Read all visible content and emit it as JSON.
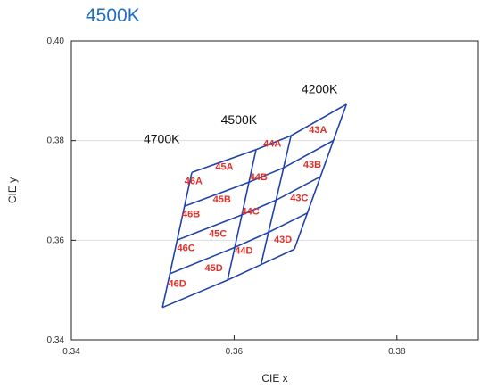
{
  "heading": "4500K",
  "chart_data": {
    "type": "scatter",
    "title": "",
    "xlabel": "CIE x",
    "ylabel": "CIE y",
    "xlim": [
      0.34,
      0.39
    ],
    "ylim": [
      0.34,
      0.4
    ],
    "x_ticks": [
      "0.34",
      "0.36",
      "0.38"
    ],
    "y_ticks": [
      "0.34",
      "0.36",
      "0.38",
      "0.40"
    ],
    "grid": "horizontal",
    "cct_labels": [
      {
        "text": "4700K",
        "x": 0.3511,
        "y": 0.3795
      },
      {
        "text": "4500K",
        "x": 0.3606,
        "y": 0.3833
      },
      {
        "text": "4200K",
        "x": 0.3705,
        "y": 0.3895
      }
    ],
    "grid_vertices": [
      [
        [
          0.3548,
          0.3736
        ],
        [
          0.3512,
          0.3465
        ]
      ],
      [
        [
          0.3627,
          0.3782
        ],
        [
          0.3592,
          0.352
        ]
      ],
      [
        [
          0.367,
          0.381
        ],
        [
          0.3633,
          0.3551
        ]
      ],
      [
        [
          0.3738,
          0.3873
        ],
        [
          0.3674,
          0.3582
        ]
      ]
    ],
    "bins": [
      {
        "label": "46A",
        "x": 0.355,
        "y": 0.372
      },
      {
        "label": "46B",
        "x": 0.3547,
        "y": 0.3653
      },
      {
        "label": "46C",
        "x": 0.3541,
        "y": 0.3585
      },
      {
        "label": "46D",
        "x": 0.353,
        "y": 0.3514
      },
      {
        "label": "45A",
        "x": 0.3588,
        "y": 0.3748
      },
      {
        "label": "45B",
        "x": 0.3585,
        "y": 0.3683
      },
      {
        "label": "45C",
        "x": 0.358,
        "y": 0.3614
      },
      {
        "label": "45D",
        "x": 0.3575,
        "y": 0.3545
      },
      {
        "label": "44A",
        "x": 0.3647,
        "y": 0.3795
      },
      {
        "label": "44B",
        "x": 0.363,
        "y": 0.3728
      },
      {
        "label": "44C",
        "x": 0.362,
        "y": 0.3659
      },
      {
        "label": "44D",
        "x": 0.3612,
        "y": 0.358
      },
      {
        "label": "43A",
        "x": 0.3703,
        "y": 0.3823
      },
      {
        "label": "43B",
        "x": 0.3696,
        "y": 0.3753
      },
      {
        "label": "43C",
        "x": 0.368,
        "y": 0.3686
      },
      {
        "label": "43D",
        "x": 0.366,
        "y": 0.3602
      }
    ],
    "colors": {
      "grid_line": "#2244aa",
      "bin_label": "#e0302a",
      "gridline": "#dddddd"
    }
  }
}
